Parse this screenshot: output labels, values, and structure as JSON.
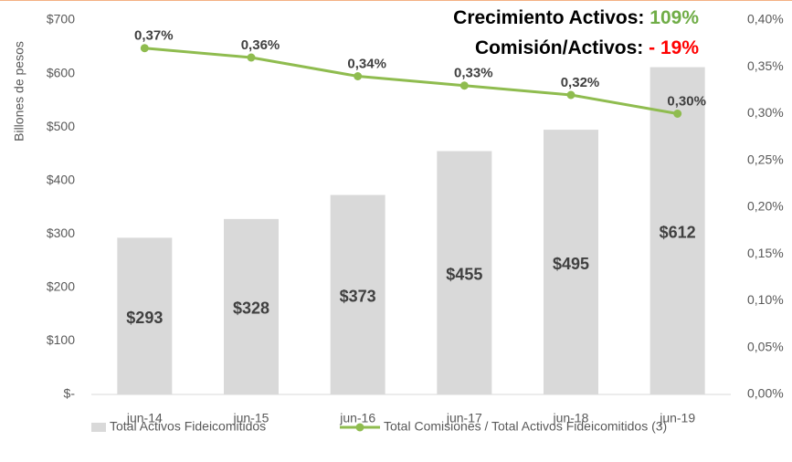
{
  "chart_data": {
    "type": "bar_line",
    "y_label": "Billones de pesos",
    "annotations": [
      {
        "text": "Crecimiento Activos:",
        "value_text": "109%",
        "value_color": "#70ad47"
      },
      {
        "text": "Comisión/Activos:",
        "value_text": "- 19%",
        "value_color": "#ff0000"
      }
    ],
    "categories": [
      "jun-14",
      "jun-15",
      "jun-16",
      "jun-17",
      "jun-18",
      "jun-19"
    ],
    "series": [
      {
        "name": "Total Activos Fideicomitidos",
        "type": "bar",
        "color": "#d9d9d9",
        "values": [
          293,
          328,
          373,
          455,
          495,
          612
        ],
        "value_labels": [
          "$293",
          "$328",
          "$373",
          "$455",
          "$495",
          "$612"
        ]
      },
      {
        "name": "Total Comisiones / Total Activos Fideicomitidos (3)",
        "type": "line",
        "axis": "y2",
        "color": "#8fbc4f",
        "values": [
          0.37,
          0.36,
          0.34,
          0.33,
          0.32,
          0.3
        ],
        "value_labels": [
          "0,37%",
          "0,36%",
          "0,34%",
          "0,33%",
          "0,32%",
          "0,30%"
        ]
      }
    ],
    "ylim": [
      0,
      700
    ],
    "yticks": [
      {
        "value": 0,
        "label": "$-"
      },
      {
        "value": 100,
        "label": "$100"
      },
      {
        "value": 200,
        "label": "$200"
      },
      {
        "value": 300,
        "label": "$300"
      },
      {
        "value": 400,
        "label": "$400"
      },
      {
        "value": 500,
        "label": "$500"
      },
      {
        "value": 600,
        "label": "$600"
      },
      {
        "value": 700,
        "label": "$700"
      }
    ],
    "y2lim": [
      0,
      0.4
    ],
    "y2ticks": [
      {
        "value": 0,
        "label": "0,00%"
      },
      {
        "value": 0.05,
        "label": "0,05%"
      },
      {
        "value": 0.1,
        "label": "0,10%"
      },
      {
        "value": 0.15,
        "label": "0,15%"
      },
      {
        "value": 0.2,
        "label": "0,20%"
      },
      {
        "value": 0.25,
        "label": "0,25%"
      },
      {
        "value": 0.3,
        "label": "0,30%"
      },
      {
        "value": 0.35,
        "label": "0,35%"
      },
      {
        "value": 0.4,
        "label": "0,40%"
      }
    ],
    "legend": "bottom"
  }
}
